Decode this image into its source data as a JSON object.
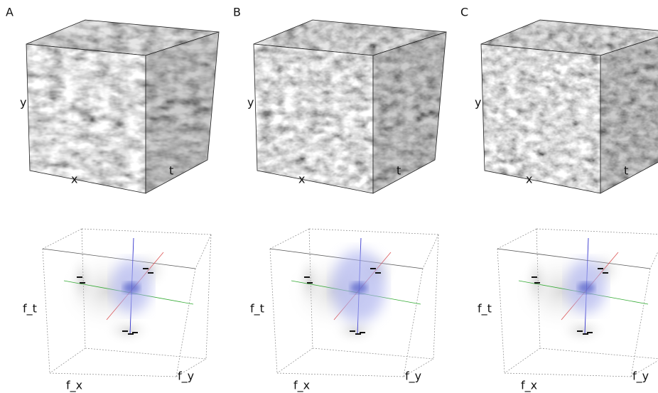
{
  "panels": [
    {
      "label": "A",
      "cube_axes": {
        "x": "x",
        "y": "y",
        "t": "t"
      },
      "spectrum_axes": {
        "x": "f_x",
        "y": "f_y",
        "t": "f_t"
      }
    },
    {
      "label": "B",
      "cube_axes": {
        "x": "x",
        "y": "y",
        "t": "t"
      },
      "spectrum_axes": {
        "x": "f_x",
        "y": "f_y",
        "t": "f_t"
      }
    },
    {
      "label": "C",
      "cube_axes": {
        "x": "x",
        "y": "y",
        "t": "t"
      },
      "spectrum_axes": {
        "x": "f_x",
        "y": "f_y",
        "t": "f_t"
      }
    }
  ]
}
